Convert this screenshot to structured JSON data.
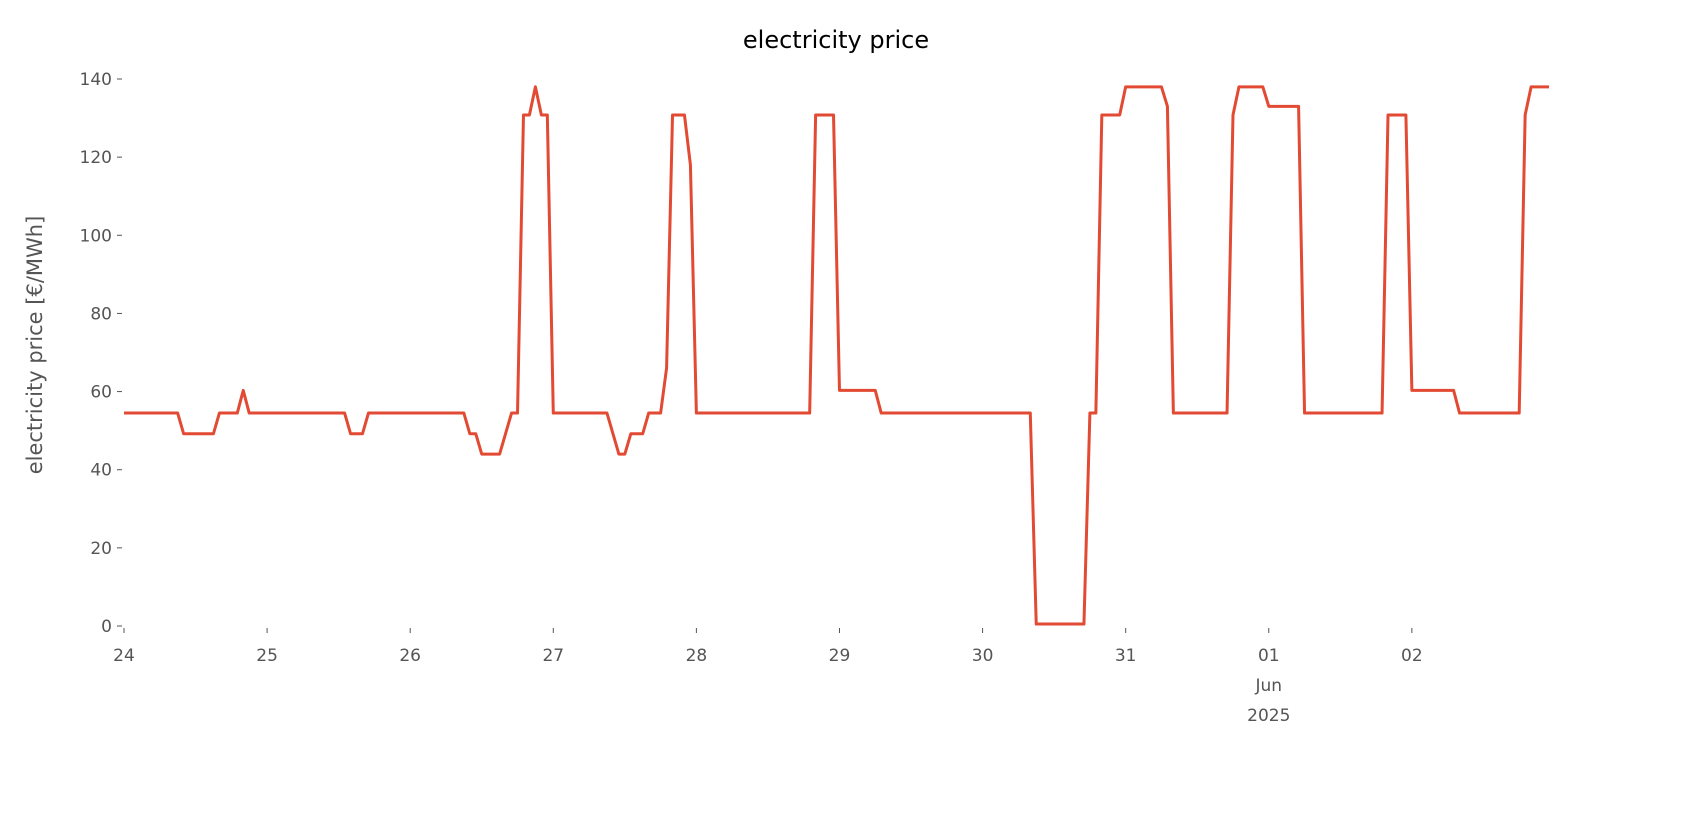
{
  "chart_data": {
    "type": "line",
    "title": "electricity price",
    "y_label": "electricity price [€/MWh]",
    "series": [
      {
        "name": "electricity price",
        "color": "#e24a33",
        "x": [
          0,
          9,
          10,
          15,
          16,
          19,
          20,
          21,
          37,
          38,
          40,
          41,
          57,
          58,
          59,
          60,
          63,
          65,
          66,
          67,
          68,
          69,
          70,
          71,
          72,
          81,
          83,
          84,
          85,
          87,
          88,
          90,
          91,
          92,
          94,
          95,
          96,
          115,
          116,
          119,
          120,
          126,
          127,
          152,
          153,
          161,
          162,
          163,
          164,
          167,
          168,
          174,
          175,
          176,
          185,
          186,
          187,
          191,
          192,
          197,
          198,
          211,
          212,
          215,
          216,
          223,
          224,
          234,
          235,
          236,
          239
        ],
        "values": [
          54.5,
          54.5,
          49.2,
          49.2,
          54.5,
          54.5,
          60.3,
          54.5,
          54.5,
          49.2,
          49.2,
          54.5,
          54.5,
          49.2,
          49.2,
          44,
          44,
          54.5,
          54.5,
          130.8,
          130.8,
          138,
          130.8,
          130.8,
          54.5,
          54.5,
          44,
          44,
          49.2,
          49.2,
          54.5,
          54.5,
          66,
          130.8,
          130.8,
          118,
          54.5,
          54.5,
          130.8,
          130.8,
          60.3,
          60.3,
          54.5,
          54.5,
          0.5,
          0.5,
          54.5,
          54.5,
          130.8,
          130.8,
          138,
          138,
          133,
          54.5,
          54.5,
          130.8,
          138,
          138,
          133,
          133,
          54.5,
          54.5,
          130.8,
          130.8,
          60.3,
          60.3,
          54.5,
          54.5,
          130.8,
          138,
          138
        ]
      }
    ],
    "xlim": [
      0,
      239
    ],
    "xticks": [
      {
        "value": 0,
        "label": "24"
      },
      {
        "value": 24,
        "label": "25"
      },
      {
        "value": 48,
        "label": "26"
      },
      {
        "value": 72,
        "label": "27"
      },
      {
        "value": 96,
        "label": "28"
      },
      {
        "value": 120,
        "label": "29"
      },
      {
        "value": 144,
        "label": "30"
      },
      {
        "value": 168,
        "label": "31"
      },
      {
        "value": 192,
        "label": "01\nJun\n2025"
      },
      {
        "value": 216,
        "label": "02"
      }
    ],
    "ylim": [
      0,
      140
    ],
    "yticks": [
      0,
      20,
      40,
      60,
      80,
      100,
      120,
      140
    ],
    "grid": false
  }
}
